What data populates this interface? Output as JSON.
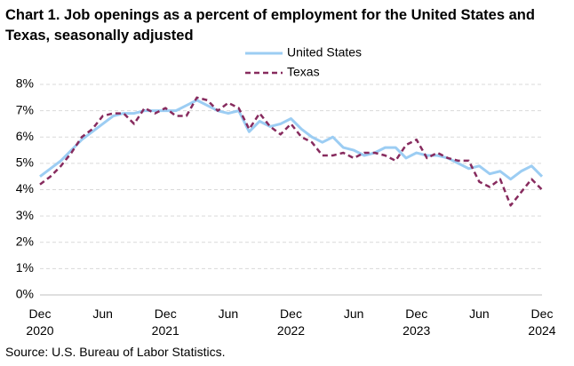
{
  "chart_data": {
    "type": "line",
    "title": "Chart 1. Job openings as a percent of employment for the United States and Texas, seasonally adjusted",
    "source": "Source: U.S. Bureau of Labor Statistics.",
    "categories": [
      "Dec 2020",
      null,
      null,
      null,
      null,
      null,
      "Jun",
      null,
      null,
      null,
      null,
      null,
      "Dec 2021",
      null,
      null,
      null,
      null,
      null,
      "Jun",
      null,
      null,
      null,
      null,
      null,
      "Dec 2022",
      null,
      null,
      null,
      null,
      null,
      "Jun",
      null,
      null,
      null,
      null,
      null,
      "Dec 2023",
      null,
      null,
      null,
      null,
      null,
      "Jun",
      null,
      null,
      null,
      null,
      null,
      "Dec 2024"
    ],
    "series": [
      {
        "name": "United States",
        "color": "#9ccdf3",
        "dashed": false,
        "values": [
          4.5,
          4.8,
          5.1,
          5.5,
          5.9,
          6.2,
          6.5,
          6.8,
          6.9,
          6.9,
          7.0,
          7.0,
          7.0,
          7.0,
          7.2,
          7.4,
          7.2,
          7.0,
          6.9,
          7.0,
          6.2,
          6.6,
          6.4,
          6.5,
          6.7,
          6.3,
          6.0,
          5.8,
          6.0,
          5.6,
          5.5,
          5.3,
          5.4,
          5.6,
          5.6,
          5.2,
          5.4,
          5.3,
          5.3,
          5.2,
          5.0,
          4.8,
          4.9,
          4.6,
          4.7,
          4.4,
          4.7,
          4.9,
          4.5
        ]
      },
      {
        "name": "Texas",
        "color": "#872b5e",
        "dashed": true,
        "values": [
          4.2,
          4.5,
          4.9,
          5.4,
          6.0,
          6.3,
          6.8,
          6.9,
          6.9,
          6.5,
          7.1,
          6.9,
          7.1,
          6.8,
          6.8,
          7.5,
          7.4,
          7.0,
          7.3,
          7.1,
          6.3,
          6.9,
          6.4,
          6.1,
          6.5,
          6.0,
          5.8,
          5.3,
          5.3,
          5.4,
          5.2,
          5.4,
          5.4,
          5.3,
          5.1,
          5.7,
          5.9,
          5.2,
          5.4,
          5.2,
          5.1,
          5.1,
          4.3,
          4.1,
          4.4,
          3.4,
          3.9,
          4.4,
          4.0
        ]
      }
    ],
    "ylim": [
      0,
      8
    ],
    "yticks": [
      {
        "value": 0,
        "label": "0%"
      },
      {
        "value": 1,
        "label": "1%"
      },
      {
        "value": 2,
        "label": "2%"
      },
      {
        "value": 3,
        "label": "3%"
      },
      {
        "value": 4,
        "label": "4%"
      },
      {
        "value": 5,
        "label": "5%"
      },
      {
        "value": 6,
        "label": "6%"
      },
      {
        "value": 7,
        "label": "7%"
      },
      {
        "value": 8,
        "label": "8%"
      }
    ],
    "grid": true
  }
}
